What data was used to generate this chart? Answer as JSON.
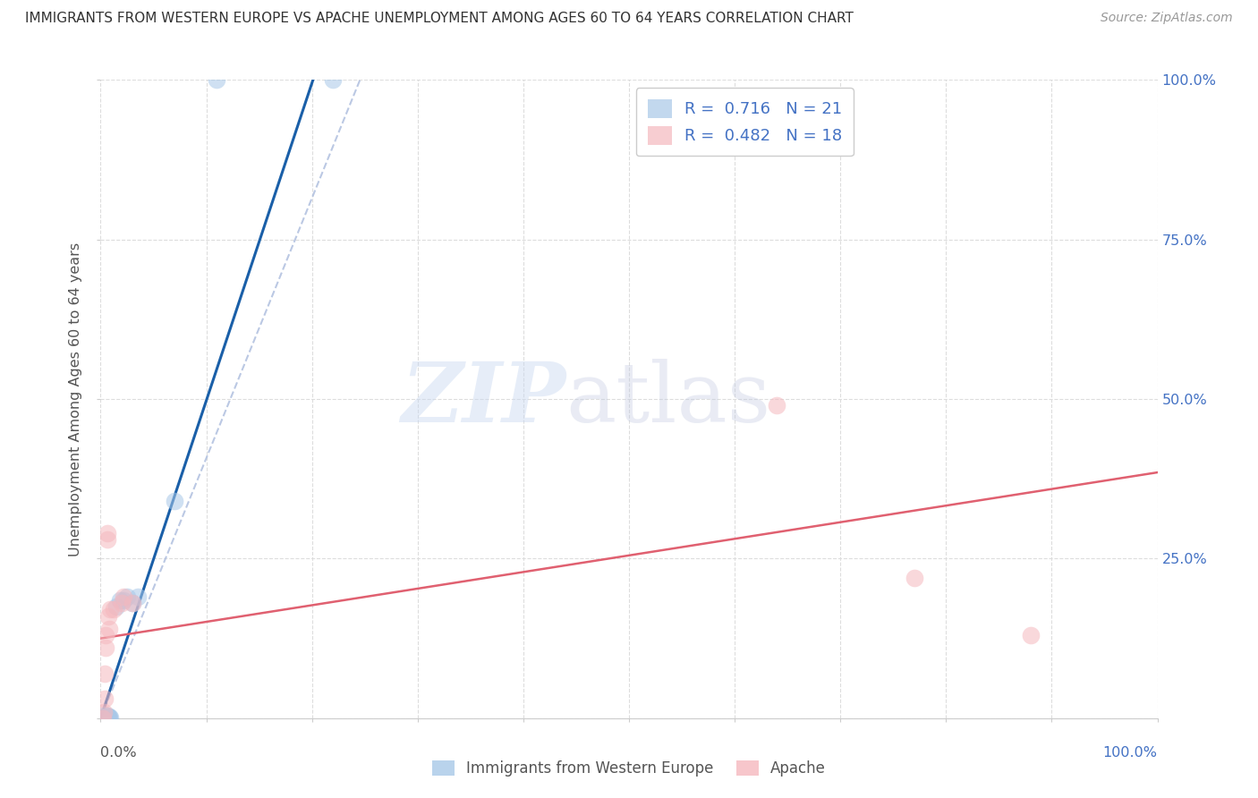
{
  "title": "IMMIGRANTS FROM WESTERN EUROPE VS APACHE UNEMPLOYMENT AMONG AGES 60 TO 64 YEARS CORRELATION CHART",
  "source": "Source: ZipAtlas.com",
  "xlabel_bottom_left": "0.0%",
  "xlabel_bottom_right": "100.0%",
  "xlabel_legend_blue": "Immigrants from Western Europe",
  "xlabel_legend_pink": "Apache",
  "ylabel": "Unemployment Among Ages 60 to 64 years",
  "xlim": [
    0,
    1.0
  ],
  "ylim": [
    0,
    1.0
  ],
  "xtick_vals": [
    0.0,
    0.1,
    0.2,
    0.3,
    0.4,
    0.5,
    0.6,
    0.7,
    0.8,
    0.9,
    1.0
  ],
  "ytick_vals": [
    0.0,
    0.25,
    0.5,
    0.75,
    1.0
  ],
  "ytick_labels_right": [
    "",
    "25.0%",
    "50.0%",
    "75.0%",
    "100.0%"
  ],
  "legend_R_blue": "0.716",
  "legend_N_blue": "21",
  "legend_R_pink": "0.482",
  "legend_N_pink": "18",
  "blue_color": "#a8c8e8",
  "pink_color": "#f5b8be",
  "blue_line_color": "#1a5fa8",
  "pink_line_color": "#e06070",
  "blue_scatter": [
    [
      0.003,
      0.003
    ],
    [
      0.004,
      0.002
    ],
    [
      0.005,
      0.001
    ],
    [
      0.005,
      0.003
    ],
    [
      0.006,
      0.001
    ],
    [
      0.006,
      0.004
    ],
    [
      0.007,
      0.001
    ],
    [
      0.007,
      0.003
    ],
    [
      0.008,
      0.0
    ],
    [
      0.008,
      0.002
    ],
    [
      0.009,
      0.001
    ],
    [
      0.015,
      0.175
    ],
    [
      0.018,
      0.185
    ],
    [
      0.022,
      0.185
    ],
    [
      0.025,
      0.19
    ],
    [
      0.03,
      0.18
    ],
    [
      0.035,
      0.19
    ],
    [
      0.07,
      0.34
    ],
    [
      0.11,
      1.0
    ],
    [
      0.22,
      1.0
    ],
    [
      0.004,
      0.005
    ]
  ],
  "pink_scatter": [
    [
      0.002,
      0.0
    ],
    [
      0.003,
      0.01
    ],
    [
      0.004,
      0.03
    ],
    [
      0.004,
      0.07
    ],
    [
      0.005,
      0.11
    ],
    [
      0.005,
      0.13
    ],
    [
      0.006,
      0.28
    ],
    [
      0.006,
      0.29
    ],
    [
      0.007,
      0.16
    ],
    [
      0.008,
      0.14
    ],
    [
      0.009,
      0.17
    ],
    [
      0.012,
      0.17
    ],
    [
      0.02,
      0.18
    ],
    [
      0.022,
      0.19
    ],
    [
      0.03,
      0.18
    ],
    [
      0.64,
      0.49
    ],
    [
      0.77,
      0.22
    ],
    [
      0.88,
      0.13
    ]
  ],
  "blue_trendline": [
    [
      0.0,
      0.0
    ],
    [
      0.205,
      1.02
    ]
  ],
  "blue_trendline_dashed": [
    [
      0.0,
      0.0
    ],
    [
      0.27,
      1.1
    ]
  ],
  "pink_trendline": [
    [
      0.0,
      0.125
    ],
    [
      1.0,
      0.385
    ]
  ]
}
